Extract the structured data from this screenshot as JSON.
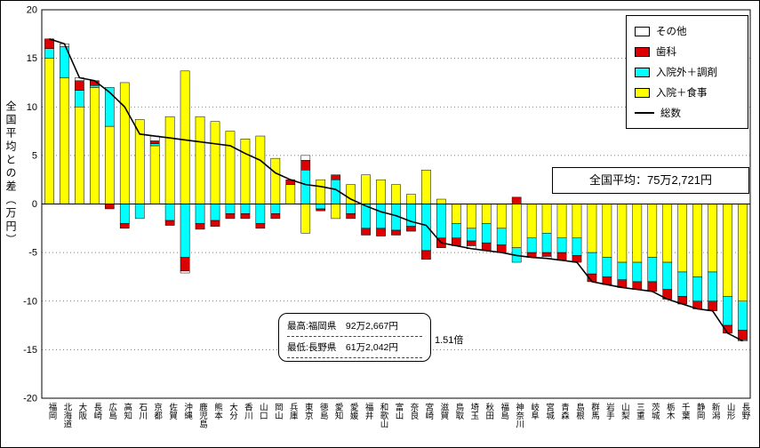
{
  "chart_data": {
    "type": "bar",
    "stacked": true,
    "overlay_line": true,
    "ylabel": "全国平均との差（万円）",
    "ylim": [
      -20,
      20
    ],
    "yticks": [
      -20,
      -15,
      -10,
      -5,
      0,
      5,
      10,
      15,
      20
    ],
    "grid": "dotted-horizontal-every-5",
    "legend_position": "top-right",
    "categories": [
      "福岡",
      "北海道",
      "大阪",
      "長崎",
      "広島",
      "高知",
      "石川",
      "京都",
      "佐賀",
      "沖縄",
      "鹿児島",
      "熊本",
      "大分",
      "香川",
      "山口",
      "岡山",
      "兵庫",
      "東京",
      "徳島",
      "愛知",
      "愛媛",
      "福井",
      "和歌山",
      "富山",
      "奈良",
      "宮崎",
      "滋賀",
      "鳥取",
      "埼玉",
      "秋田",
      "福島",
      "神奈川",
      "岐阜",
      "宮城",
      "青森",
      "島根",
      "群馬",
      "岩手",
      "山梨",
      "三重",
      "茨城",
      "栃木",
      "千葉",
      "静岡",
      "新潟",
      "山形",
      "長野"
    ],
    "series": [
      {
        "name": "入院＋食事",
        "color": "#ffff00",
        "values": [
          15.0,
          13.0,
          10.0,
          12.0,
          8.0,
          12.5,
          8.7,
          6.0,
          9.0,
          13.7,
          9.0,
          8.5,
          7.5,
          6.7,
          7.0,
          4.7,
          2.0,
          -3.0,
          2.5,
          -1.5,
          2.0,
          3.0,
          2.5,
          2.0,
          1.0,
          3.5,
          0.5,
          -2.0,
          -2.5,
          -2.0,
          -2.5,
          -4.5,
          -3.5,
          -3.0,
          -3.5,
          -3.5,
          -5.0,
          -5.5,
          -6.0,
          -6.0,
          -5.5,
          -6.0,
          -7.0,
          -7.5,
          -7.0,
          -9.5,
          -10.0
        ]
      },
      {
        "name": "入院外＋調剤",
        "color": "#00ffff",
        "values": [
          1.0,
          3.2,
          1.7,
          0.2,
          4.0,
          -2.0,
          -1.5,
          0.2,
          -1.7,
          -5.5,
          -2.0,
          -1.7,
          -1.0,
          -1.0,
          -2.0,
          -1.0,
          0.0,
          3.5,
          -0.5,
          2.5,
          -1.0,
          -2.5,
          -2.5,
          -2.7,
          -2.3,
          -4.8,
          -3.5,
          -1.5,
          -1.3,
          -2.0,
          -1.7,
          -1.5,
          -1.5,
          -2.0,
          -1.5,
          -1.8,
          -2.2,
          -2.0,
          -1.8,
          -2.0,
          -2.5,
          -2.8,
          -2.5,
          -2.5,
          -3.0,
          -3.0,
          -3.0
        ]
      },
      {
        "name": "歯科",
        "color": "#dd0000",
        "values": [
          1.0,
          0.0,
          1.0,
          0.5,
          -0.5,
          -0.5,
          0.0,
          0.3,
          -0.5,
          -1.4,
          -0.6,
          -0.6,
          -0.5,
          -0.5,
          -0.5,
          -0.5,
          0.5,
          1.0,
          -0.2,
          0.5,
          -0.5,
          -0.7,
          -0.8,
          -0.5,
          -0.5,
          -0.9,
          -1.0,
          -0.8,
          -0.5,
          -0.8,
          -0.8,
          0.7,
          -0.5,
          -0.4,
          -0.8,
          -0.7,
          -0.8,
          -0.8,
          -0.8,
          -0.8,
          -1.0,
          -1.0,
          -0.8,
          -0.8,
          -1.0,
          -0.8,
          -1.0
        ]
      },
      {
        "name": "その他",
        "color": "#ffffff",
        "values": [
          0.0,
          0.3,
          0.3,
          0.0,
          0.0,
          0.0,
          0.0,
          0.5,
          0.0,
          -0.2,
          0.0,
          0.0,
          0.0,
          0.0,
          0.0,
          0.0,
          0.0,
          0.5,
          0.0,
          0.0,
          0.0,
          0.0,
          0.0,
          0.0,
          0.0,
          0.0,
          0.0,
          0.0,
          -0.3,
          0.0,
          0.0,
          0.0,
          0.0,
          -0.2,
          0.0,
          0.0,
          0.0,
          0.0,
          0.0,
          0.0,
          0.0,
          0.0,
          0.0,
          0.0,
          0.0,
          0.0,
          -0.1
        ]
      }
    ],
    "line": {
      "name": "総数",
      "color": "#000000",
      "values": [
        17.0,
        16.5,
        13.0,
        12.7,
        11.5,
        10.0,
        7.2,
        7.0,
        6.8,
        6.6,
        6.4,
        6.2,
        6.0,
        5.2,
        4.5,
        3.2,
        2.5,
        2.0,
        1.8,
        1.5,
        0.5,
        -0.2,
        -0.8,
        -1.2,
        -1.8,
        -2.2,
        -4.0,
        -4.3,
        -4.6,
        -4.8,
        -5.0,
        -5.3,
        -5.5,
        -5.6,
        -5.8,
        -6.0,
        -8.0,
        -8.3,
        -8.6,
        -8.8,
        -9.0,
        -9.8,
        -10.3,
        -10.8,
        -11.0,
        -13.3,
        -14.1
      ]
    },
    "legend": [
      {
        "label": "その他",
        "color": "#ffffff",
        "type": "box"
      },
      {
        "label": "歯科",
        "color": "#dd0000",
        "type": "box"
      },
      {
        "label": "入院外＋調剤",
        "color": "#00ffff",
        "type": "box"
      },
      {
        "label": "入院＋食事",
        "color": "#ffff00",
        "type": "box"
      },
      {
        "label": "総数",
        "color": "#000000",
        "type": "line"
      }
    ],
    "annotations": {
      "average": "全国平均：75万2,721円",
      "max": "最高:福岡県　92万2,667円",
      "min": "最低:長野県　61万2,042円",
      "ratio": "1.51倍"
    }
  }
}
